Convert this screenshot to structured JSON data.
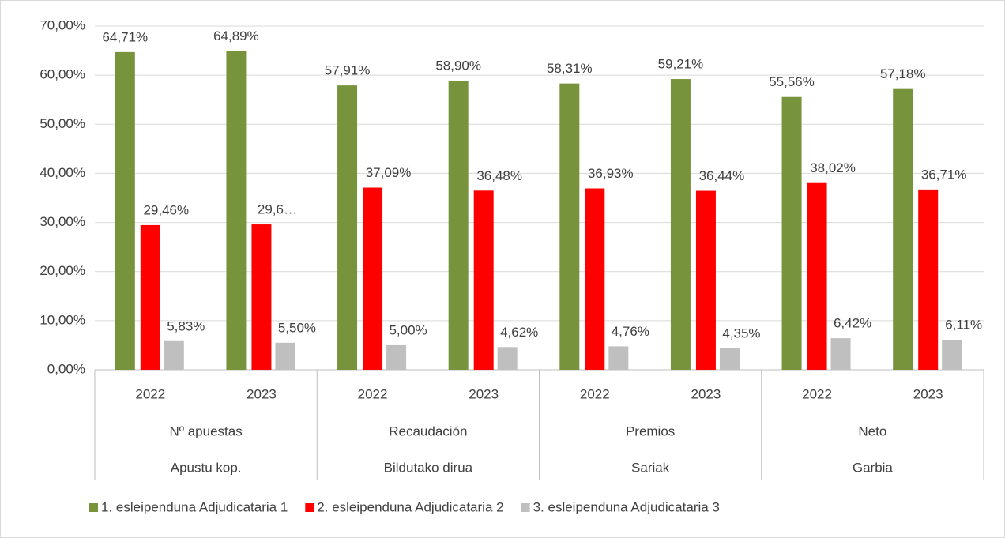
{
  "chart_data": {
    "type": "bar",
    "categories": [
      "2022",
      "2023",
      "2022",
      "2023",
      "2022",
      "2023",
      "2022",
      "2023"
    ],
    "groups": [
      [
        "Nº apuestas",
        "Apustu kop."
      ],
      [
        "Recaudación",
        "Bildutako dirua"
      ],
      [
        "Premios",
        "Sariak"
      ],
      [
        "Neto",
        "Garbia"
      ]
    ],
    "series": [
      {
        "name": "1. esleipenduna Adjudicataria 1",
        "color": "#77933c",
        "values": [
          64.71,
          64.89,
          57.91,
          58.9,
          58.31,
          59.21,
          55.56,
          57.18
        ],
        "value_labels": [
          "64,71%",
          "64,89%",
          "57,91%",
          "58,90%",
          "58,31%",
          "59,21%",
          "55,56%",
          "57,18%"
        ]
      },
      {
        "name": "2. esleipenduna Adjudicataria 2",
        "color": "#ff0000",
        "values": [
          29.46,
          29.6,
          37.09,
          36.48,
          36.93,
          36.44,
          38.02,
          36.71
        ],
        "value_labels": [
          "29,46%",
          "29,6…",
          "37,09%",
          "36,48%",
          "36,93%",
          "36,44%",
          "38,02%",
          "36,71%"
        ]
      },
      {
        "name": "3. esleipenduna Adjudicataria 3",
        "color": "#bfbfbf",
        "values": [
          5.83,
          5.5,
          5.0,
          4.62,
          4.76,
          4.35,
          6.42,
          6.11
        ],
        "value_labels": [
          "5,83%",
          "5,50%",
          "5,00%",
          "4,62%",
          "4,76%",
          "4,35%",
          "6,42%",
          "6,11%"
        ]
      }
    ],
    "ylim": [
      0,
      70
    ],
    "yticks": [
      {
        "value": 0,
        "label": "0,00%"
      },
      {
        "value": 10,
        "label": "10,00%"
      },
      {
        "value": 20,
        "label": "20,00%"
      },
      {
        "value": 30,
        "label": "30,00%"
      },
      {
        "value": 40,
        "label": "40,00%"
      },
      {
        "value": 50,
        "label": "50,00%"
      },
      {
        "value": 60,
        "label": "60,00%"
      },
      {
        "value": 70,
        "label": "70,00%"
      }
    ],
    "grid": true,
    "legend": "bottom"
  }
}
